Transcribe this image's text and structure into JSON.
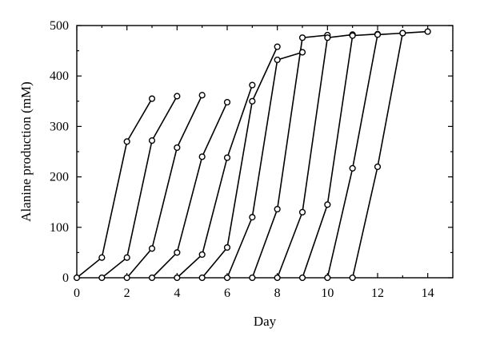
{
  "chart_data": {
    "type": "line",
    "title": "",
    "xlabel": "Day",
    "ylabel": "Alanine production (mM)",
    "xlim": [
      0,
      15
    ],
    "ylim": [
      0,
      500
    ],
    "x_ticks": [
      0,
      2,
      4,
      6,
      8,
      10,
      12,
      14
    ],
    "y_ticks": [
      0,
      100,
      200,
      300,
      400,
      500
    ],
    "grid": false,
    "legend": "none",
    "series": [
      {
        "x": [
          0,
          1,
          2,
          3
        ],
        "values": [
          0,
          40,
          270,
          355
        ]
      },
      {
        "x": [
          1,
          2,
          3,
          4
        ],
        "values": [
          0,
          40,
          272,
          360
        ]
      },
      {
        "x": [
          2,
          3,
          4,
          5
        ],
        "values": [
          0,
          58,
          258,
          362
        ]
      },
      {
        "x": [
          3,
          4,
          5,
          6
        ],
        "values": [
          0,
          50,
          240,
          348
        ]
      },
      {
        "x": [
          4,
          5,
          6,
          7
        ],
        "values": [
          0,
          46,
          238,
          382
        ]
      },
      {
        "x": [
          5,
          6,
          7,
          8
        ],
        "values": [
          0,
          60,
          350,
          458
        ]
      },
      {
        "x": [
          6,
          7,
          8,
          9
        ],
        "values": [
          0,
          120,
          432,
          447
        ]
      },
      {
        "x": [
          7,
          8,
          9,
          10
        ],
        "values": [
          0,
          136,
          476,
          481
        ]
      },
      {
        "x": [
          8,
          9,
          10,
          11
        ],
        "values": [
          0,
          130,
          476,
          482
        ]
      },
      {
        "x": [
          9,
          10,
          11,
          12
        ],
        "values": [
          0,
          145,
          480,
          483
        ]
      },
      {
        "x": [
          10,
          11,
          12,
          13
        ],
        "values": [
          0,
          217,
          482,
          485
        ]
      },
      {
        "x": [
          11,
          12,
          13,
          14
        ],
        "values": [
          0,
          220,
          485,
          488
        ]
      }
    ]
  }
}
